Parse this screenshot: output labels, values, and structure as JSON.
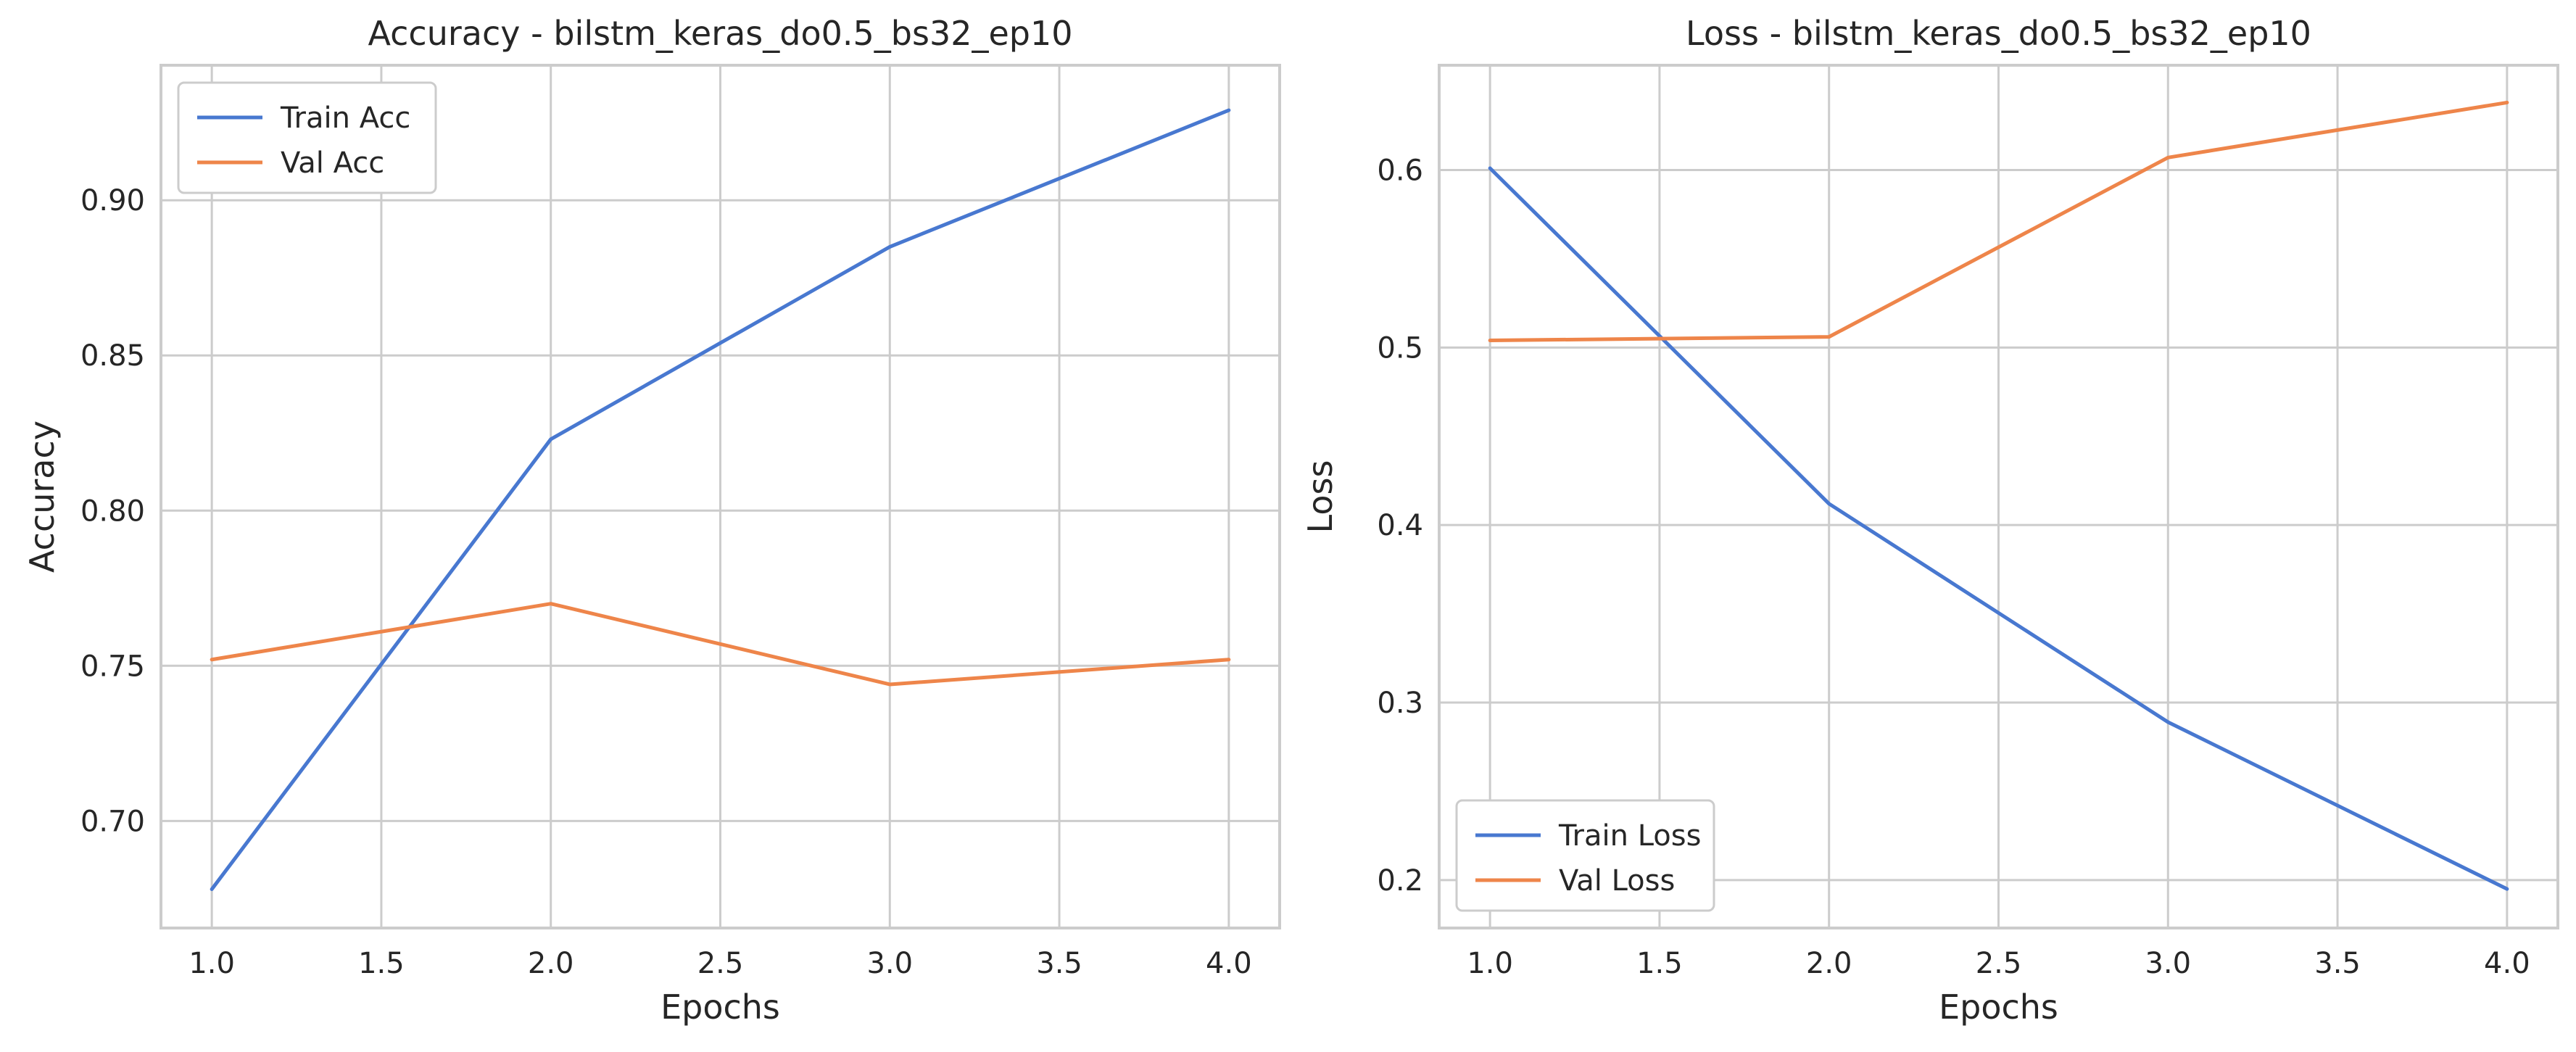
{
  "chart_data": [
    {
      "type": "line",
      "title": "Accuracy - bilstm_keras_do0.5_bs32_ep10",
      "xlabel": "Epochs",
      "ylabel": "Accuracy",
      "x": [
        1.0,
        2.0,
        3.0,
        4.0
      ],
      "xlim": [
        0.85,
        4.15
      ],
      "ylim": [
        0.6655,
        0.9435
      ],
      "xticks": [
        "1.0",
        "1.5",
        "2.0",
        "2.5",
        "3.0",
        "3.5",
        "4.0"
      ],
      "yticks": [
        "0.70",
        "0.75",
        "0.80",
        "0.85",
        "0.90"
      ],
      "grid": true,
      "legend_position": "upper-left",
      "series": [
        {
          "name": "Train Acc",
          "color": "#4878d0",
          "values": [
            0.678,
            0.823,
            0.885,
            0.929
          ]
        },
        {
          "name": "Val Acc",
          "color": "#ee854a",
          "values": [
            0.752,
            0.77,
            0.744,
            0.752
          ]
        }
      ]
    },
    {
      "type": "line",
      "title": "Loss - bilstm_keras_do0.5_bs32_ep10",
      "xlabel": "Epochs",
      "ylabel": "Loss",
      "x": [
        1.0,
        2.0,
        3.0,
        4.0
      ],
      "xlim": [
        0.85,
        4.15
      ],
      "ylim": [
        0.173,
        0.659
      ],
      "xticks": [
        "1.0",
        "1.5",
        "2.0",
        "2.5",
        "3.0",
        "3.5",
        "4.0"
      ],
      "yticks": [
        "0.2",
        "0.3",
        "0.4",
        "0.5",
        "0.6"
      ],
      "grid": true,
      "legend_position": "lower-left",
      "series": [
        {
          "name": "Train Loss",
          "color": "#4878d0",
          "values": [
            0.601,
            0.412,
            0.289,
            0.195
          ]
        },
        {
          "name": "Val Loss",
          "color": "#ee854a",
          "values": [
            0.504,
            0.506,
            0.607,
            0.638
          ]
        }
      ]
    }
  ]
}
